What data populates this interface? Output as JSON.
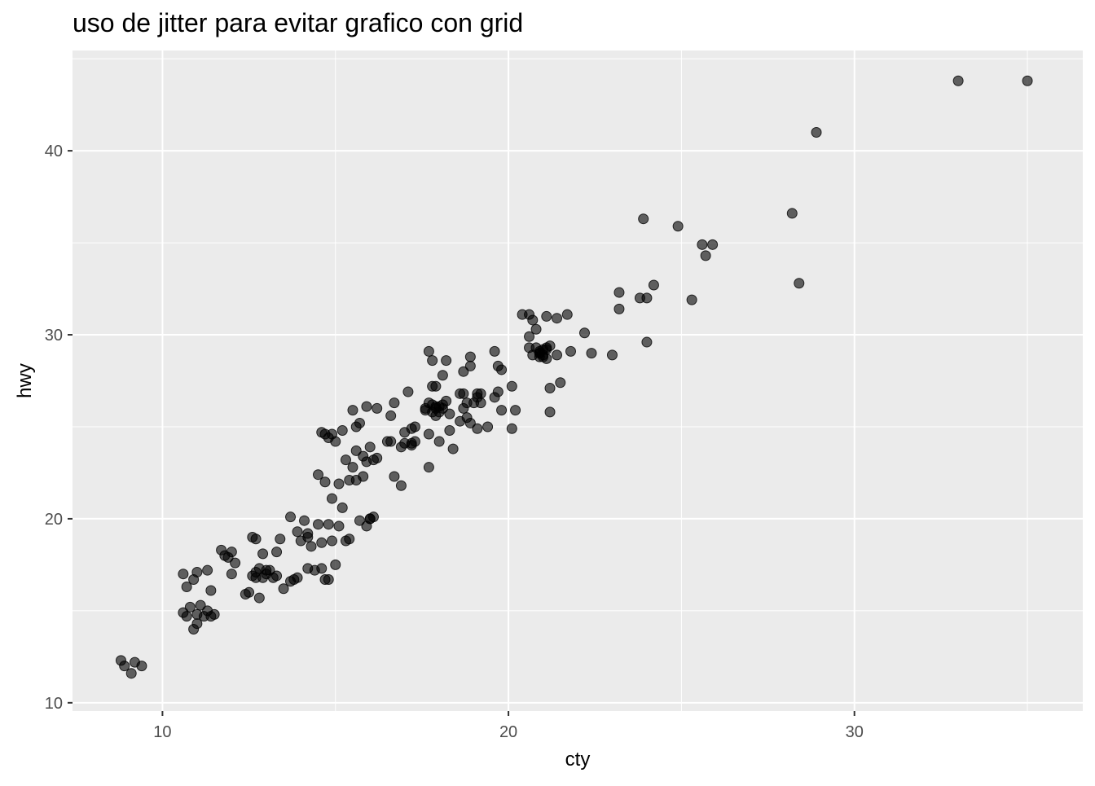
{
  "chart_data": {
    "type": "scatter",
    "title": "uso de jitter para evitar grafico con grid",
    "xlabel": "cty",
    "ylabel": "hwy",
    "xlim": [
      7.4,
      36.6
    ],
    "ylim": [
      9.55,
      45.45
    ],
    "xticks": [
      10,
      20,
      30
    ],
    "yticks": [
      10,
      20,
      30,
      40
    ],
    "grid": true,
    "background": "#ebebeb",
    "grid_color": "#ffffff",
    "point_color": "#000000",
    "point_alpha": 0.6,
    "x": [
      8.8,
      8.9,
      9.2,
      9.4,
      9.1,
      10.6,
      10.7,
      10.9,
      11.0,
      11.3,
      11.4,
      11.5,
      10.6,
      10.8,
      11.0,
      11.2,
      11.4,
      10.9,
      10.7,
      11.1,
      11.3,
      11.0,
      11.7,
      11.9,
      12.0,
      12.1,
      12.0,
      12.4,
      12.5,
      11.8,
      12.6,
      12.7,
      12.9,
      12.8,
      13.0,
      13.1,
      13.3,
      13.4,
      13.5,
      13.7,
      12.7,
      12.9,
      13.2,
      12.8,
      13.0,
      12.6,
      13.3,
      12.7,
      13.7,
      13.9,
      14.1,
      14.2,
      14.3,
      14.5,
      13.8,
      14.2,
      14.4,
      14.0,
      14.2,
      13.9,
      14.6,
      14.5,
      14.7,
      14.8,
      14.9,
      15.0,
      14.6,
      14.7,
      14.9,
      15.1,
      15.2,
      14.8,
      14.9,
      15.0,
      14.7,
      14.8,
      14.6,
      15.1,
      15.2,
      15.3,
      15.5,
      15.4,
      15.6,
      15.7,
      15.9,
      16.0,
      16.1,
      16.2,
      15.6,
      15.8,
      16.0,
      15.5,
      15.7,
      15.9,
      16.2,
      15.6,
      15.8,
      15.9,
      16.1,
      15.4,
      15.3,
      16.0,
      16.5,
      16.7,
      16.6,
      16.9,
      17.0,
      17.2,
      17.3,
      17.1,
      16.7,
      16.9,
      17.2,
      17.3,
      17.0,
      16.6,
      17.2,
      17.6,
      17.7,
      17.8,
      17.9,
      18.0,
      18.1,
      17.7,
      17.8,
      17.9,
      18.1,
      18.2,
      18.3,
      18.4,
      17.8,
      17.9,
      18.0,
      18.1,
      17.7,
      17.6,
      17.9,
      18.2,
      18.3,
      18.0,
      17.7,
      17.8,
      18.6,
      18.7,
      18.9,
      19.1,
      19.2,
      18.7,
      18.9,
      19.1,
      18.8,
      18.6,
      19.2,
      19.4,
      19.1,
      18.9,
      18.7,
      19.0,
      18.8,
      19.6,
      19.7,
      19.8,
      20.1,
      20.2,
      19.6,
      19.7,
      19.8,
      20.1,
      20.4,
      20.6,
      20.7,
      20.8,
      21.1,
      21.4,
      21.7,
      20.6,
      20.8,
      20.9,
      21.0,
      21.1,
      21.2,
      20.7,
      20.9,
      21.1,
      21.2,
      21.5,
      20.6,
      20.9,
      21.0,
      21.1,
      21.4,
      21.0,
      20.9,
      21.2,
      22.2,
      21.8,
      22.4,
      23.0,
      23.2,
      23.2,
      23.9,
      23.8,
      24.0,
      24.2,
      24.0,
      24.9,
      25.3,
      25.6,
      25.7,
      25.9,
      28.2,
      28.4,
      28.9,
      33.0,
      35.0
    ],
    "y": [
      12.3,
      12.0,
      12.2,
      12.0,
      11.6,
      17.0,
      16.3,
      16.7,
      17.1,
      17.2,
      16.1,
      14.8,
      14.9,
      15.2,
      14.3,
      14.7,
      14.7,
      14.0,
      14.7,
      15.3,
      15.0,
      14.8,
      18.3,
      17.9,
      18.2,
      17.6,
      17.0,
      15.9,
      16.0,
      18.0,
      19.0,
      18.9,
      18.1,
      17.3,
      17.2,
      17.2,
      16.9,
      18.9,
      16.2,
      16.6,
      16.8,
      16.8,
      16.8,
      15.7,
      17.0,
      16.9,
      18.2,
      17.1,
      20.1,
      19.3,
      19.9,
      19.2,
      18.5,
      19.7,
      16.7,
      17.3,
      17.2,
      18.8,
      19.0,
      16.8,
      18.7,
      22.4,
      22.0,
      24.4,
      24.6,
      24.2,
      24.7,
      24.6,
      21.1,
      19.6,
      20.6,
      19.7,
      18.8,
      17.5,
      16.7,
      16.7,
      17.3,
      21.9,
      24.8,
      23.2,
      22.8,
      22.1,
      22.1,
      19.9,
      19.6,
      20.0,
      20.1,
      23.3,
      23.7,
      23.4,
      23.9,
      25.9,
      25.2,
      26.1,
      26.0,
      25.0,
      22.3,
      23.1,
      23.2,
      18.9,
      18.8,
      20.0,
      24.2,
      26.3,
      25.6,
      23.9,
      24.1,
      24.0,
      24.2,
      26.9,
      22.3,
      21.8,
      24.9,
      25.0,
      24.7,
      24.2,
      24.1,
      25.9,
      24.6,
      26.2,
      26.0,
      25.8,
      26.0,
      29.1,
      28.6,
      27.2,
      27.8,
      28.6,
      24.8,
      23.8,
      25.8,
      25.6,
      26.1,
      26.2,
      22.8,
      26.0,
      26.1,
      26.4,
      25.7,
      24.2,
      26.3,
      27.2,
      25.3,
      28.0,
      28.8,
      26.8,
      26.3,
      26.8,
      28.3,
      26.6,
      25.5,
      26.8,
      26.8,
      25.0,
      24.9,
      25.2,
      26.0,
      26.3,
      26.3,
      29.1,
      28.3,
      28.1,
      27.2,
      25.9,
      26.6,
      26.9,
      25.9,
      24.9,
      31.1,
      31.1,
      30.8,
      30.3,
      31.0,
      30.9,
      31.1,
      29.9,
      29.3,
      29.0,
      28.9,
      29.2,
      29.4,
      28.9,
      28.8,
      28.7,
      27.1,
      27.4,
      29.3,
      29.1,
      29.2,
      29.3,
      28.9,
      28.8,
      29.0,
      25.8,
      30.1,
      29.1,
      29.0,
      28.9,
      32.3,
      31.4,
      36.3,
      32.0,
      29.6,
      32.7,
      32.0,
      35.9,
      31.9,
      34.9,
      34.3,
      34.9,
      36.6,
      32.8,
      41.0,
      43.8,
      43.8
    ]
  }
}
